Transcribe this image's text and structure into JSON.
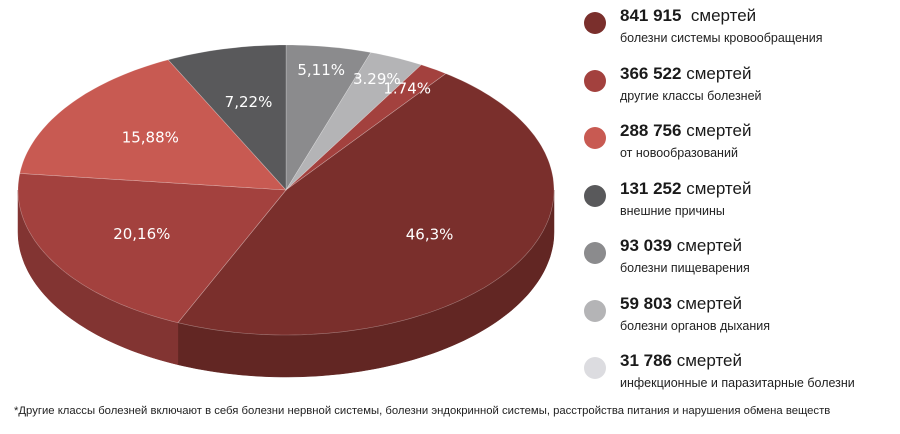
{
  "chart_data": {
    "type": "pie",
    "style": "3d",
    "slices": [
      {
        "label": "5,11%",
        "value": 5.11,
        "color": "#8b8b8d"
      },
      {
        "label": "3.29%",
        "value": 3.29,
        "color": "#b4b4b6"
      },
      {
        "label": "1.74%",
        "value": 1.74,
        "color": "#a3413e"
      },
      {
        "label": "46,3%",
        "value": 46.3,
        "color": "#7a2f2c"
      },
      {
        "label": "20,16%",
        "value": 20.16,
        "color": "#a3413e"
      },
      {
        "label": "15,88%",
        "value": 15.88,
        "color": "#c85a52"
      },
      {
        "label": "7,22%",
        "value": 7.22,
        "color": "#59595b"
      }
    ],
    "legend_placement": "right",
    "legend": [
      {
        "count": "841 915",
        "unit": "смертей",
        "desc": "болезни системы кровообращения",
        "color": "#7a2f2c"
      },
      {
        "count": "366 522",
        "unit": "смертей",
        "desc": "другие классы болезней",
        "color": "#a3413e"
      },
      {
        "count": "288 756",
        "unit": "смертей",
        "desc": "от новообразований",
        "color": "#c85a52"
      },
      {
        "count": "131 252",
        "unit": "смертей",
        "desc": "внешние причины",
        "color": "#59595b"
      },
      {
        "count": "93 039",
        "unit": "смертей",
        "desc": "болезни пищеварения",
        "color": "#8b8b8d"
      },
      {
        "count": "59 803",
        "unit": "смертей",
        "desc": "болезни органов дыхания",
        "color": "#b4b4b6"
      },
      {
        "count": "31 786",
        "unit": "смертей",
        "desc": "инфекционные и паразитарные болезни",
        "color": "#dcdce0"
      }
    ]
  },
  "footnote": "*Другие классы болезней включают в себя болезни нервной системы, болезни эндокринной системы, расстройства питания и нарушения обмена веществ"
}
